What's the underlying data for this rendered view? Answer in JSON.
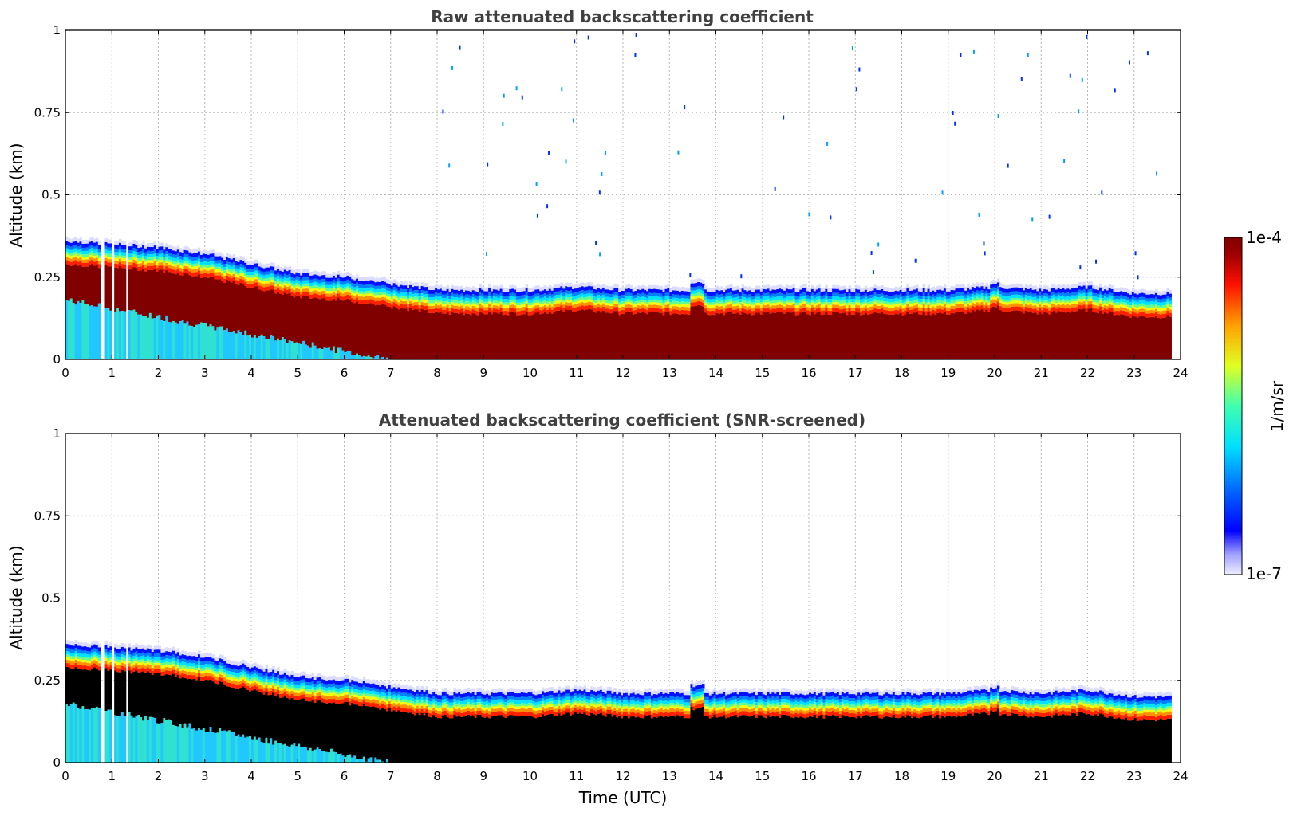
{
  "figure": {
    "xlabel": "Time (UTC)",
    "colorbar": {
      "label": "1/m/sr",
      "max_label": "1e-4",
      "min_label": "1e-7",
      "scale": "log",
      "colormap": "jet-like (white-blue-cyan-green-yellow-red-darkred)"
    }
  },
  "chart_data": [
    {
      "type": "heatmap",
      "title": "Raw attenuated backscattering coefficient",
      "xlabel": "",
      "ylabel": "Altitude (km)",
      "xlim": [
        0,
        24
      ],
      "ylim": [
        0,
        1
      ],
      "xticks": [
        "0",
        "1",
        "2",
        "3",
        "4",
        "5",
        "6",
        "7",
        "8",
        "9",
        "10",
        "11",
        "12",
        "13",
        "14",
        "15",
        "16",
        "17",
        "18",
        "19",
        "20",
        "21",
        "22",
        "23",
        "24"
      ],
      "yticks": [
        "0",
        "0.25",
        "0.5",
        "0.75",
        "1"
      ],
      "grid": true,
      "layer_top_km": {
        "time_h": [
          0,
          1,
          2,
          3,
          4,
          5,
          6,
          7,
          8,
          9,
          10,
          11,
          12,
          13,
          14,
          15,
          16,
          17,
          18,
          19,
          20,
          21,
          22,
          23,
          23.8
        ],
        "top": [
          0.36,
          0.35,
          0.34,
          0.32,
          0.29,
          0.26,
          0.25,
          0.23,
          0.21,
          0.21,
          0.21,
          0.22,
          0.21,
          0.21,
          0.21,
          0.21,
          0.21,
          0.21,
          0.21,
          0.21,
          0.22,
          0.21,
          0.22,
          0.2,
          0.2
        ]
      },
      "saturated_core": true,
      "data_end_h": 23.8
    },
    {
      "type": "heatmap",
      "title": "Attenuated backscattering coefficient (SNR-screened)",
      "xlabel": "Time (UTC)",
      "ylabel": "Altitude (km)",
      "xlim": [
        0,
        24
      ],
      "ylim": [
        0,
        1
      ],
      "xticks": [
        "0",
        "1",
        "2",
        "3",
        "4",
        "5",
        "6",
        "7",
        "8",
        "9",
        "10",
        "11",
        "12",
        "13",
        "14",
        "15",
        "16",
        "17",
        "18",
        "19",
        "20",
        "21",
        "22",
        "23",
        "24"
      ],
      "yticks": [
        "0",
        "0.25",
        "0.5",
        "0.75",
        "1"
      ],
      "grid": true,
      "layer_top_km": {
        "time_h": [
          0,
          1,
          2,
          3,
          4,
          5,
          6,
          7,
          8,
          9,
          10,
          11,
          12,
          13,
          14,
          15,
          16,
          17,
          18,
          19,
          20,
          21,
          22,
          23,
          23.8
        ],
        "top": [
          0.36,
          0.35,
          0.34,
          0.32,
          0.29,
          0.26,
          0.25,
          0.23,
          0.21,
          0.21,
          0.21,
          0.22,
          0.21,
          0.21,
          0.21,
          0.21,
          0.21,
          0.21,
          0.21,
          0.21,
          0.22,
          0.21,
          0.22,
          0.2,
          0.2
        ]
      },
      "saturated_core": false,
      "data_end_h": 23.8
    }
  ]
}
